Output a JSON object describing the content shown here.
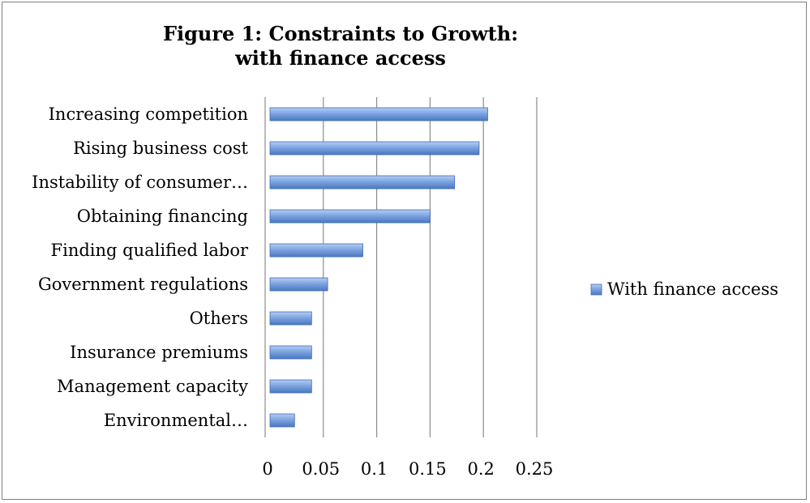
{
  "chart_data": {
    "type": "bar",
    "orientation": "horizontal",
    "title_lines": [
      "Figure 1: Constraints to Growth:",
      "with finance access"
    ],
    "categories": [
      "Increasing competition",
      "Rising business cost",
      "Instability of consumer…",
      "Obtaining financing",
      "Finding qualified labor",
      "Government regulations",
      "Others",
      "Insurance premiums",
      "Management capacity",
      "Environmental…"
    ],
    "series": [
      {
        "name": "With finance access",
        "values": [
          0.204,
          0.196,
          0.173,
          0.15,
          0.087,
          0.054,
          0.039,
          0.039,
          0.039,
          0.023
        ]
      }
    ],
    "xlim": [
      0,
      0.25
    ],
    "x_ticks": [
      "0",
      "0.05",
      "0.1",
      "0.15",
      "0.2",
      "0.25"
    ],
    "x_tick_values": [
      0,
      0.05,
      0.1,
      0.15,
      0.2,
      0.25
    ],
    "grid": "vertical",
    "legend_position": "right",
    "colors": {
      "bar_fill_top": "#a9c4f0",
      "bar_fill_bottom": "#4f81bd",
      "bar_stroke": "#3c6cb4",
      "grid": "#8c8c8c",
      "frame": "#7f7f7f"
    }
  }
}
